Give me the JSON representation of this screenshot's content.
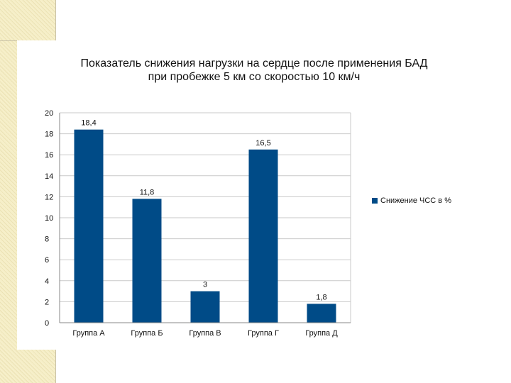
{
  "colors": {
    "bar": "#004b87",
    "grid": "#c9c9c9",
    "axis": "#888888",
    "text": "#111111"
  },
  "chart_data": {
    "type": "bar",
    "title": "Показатель снижения нагрузки на сердце после применения БАД при пробежке 5 км со скоростью 10 км/ч",
    "title_lines": [
      "Показатель снижения нагрузки на сердце после применения БАД",
      "при пробежке 5 км со скоростью 10 км/ч"
    ],
    "categories": [
      "Группа А",
      "Группа Б",
      "Группа В",
      "Группа Г",
      "Группа Д"
    ],
    "series": [
      {
        "name": "Снижение ЧСС в %",
        "values": [
          18.4,
          11.8,
          3,
          16.5,
          1.8
        ],
        "data_labels": [
          "18,4",
          "11,8",
          "3",
          "16,5",
          "1,8"
        ]
      }
    ],
    "xlabel": "",
    "ylabel": "",
    "ylim": [
      0,
      20
    ],
    "yticks": [
      0,
      2,
      4,
      6,
      8,
      10,
      12,
      14,
      16,
      18,
      20
    ],
    "grid": true,
    "legend": "right"
  }
}
